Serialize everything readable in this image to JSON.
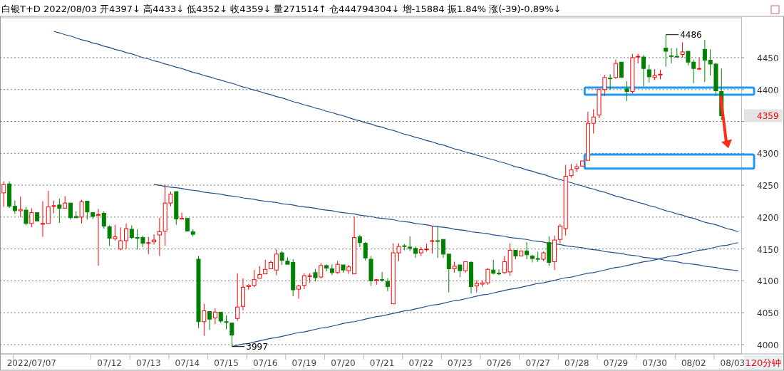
{
  "chart_data": {
    "type": "candlestick",
    "title": "白银T+D 2022/08/03 开4397↓ 高4433↓ 低4352↓ 收4359↓ 量271514↑ 仓444794304↓ 增-15884 振1.84% 涨(-39)-0.89%↓",
    "categories": [
      null,
      null,
      null,
      null,
      null,
      "2022/07/07",
      null,
      null,
      null,
      null,
      null,
      null,
      null,
      null,
      null,
      null,
      null,
      null,
      null,
      "07/12",
      null,
      null,
      null,
      null,
      null,
      null,
      "07/13",
      null,
      null,
      null,
      null,
      null,
      null,
      "07/14",
      null,
      null,
      null,
      null,
      null,
      null,
      "07/15",
      null,
      null,
      null,
      null,
      null,
      null,
      "07/16",
      null,
      null,
      null,
      null,
      null,
      null,
      "07/19",
      null,
      null,
      null,
      null,
      null,
      null,
      "07/20",
      null,
      null,
      null,
      null,
      null,
      null,
      "07/21",
      null,
      null,
      null,
      null,
      null,
      null,
      "07/22",
      null,
      null,
      null,
      null,
      null,
      null,
      "07/23",
      null,
      null,
      null,
      null,
      null,
      null,
      "07/26",
      null,
      null,
      null,
      null,
      null,
      null,
      "07/27",
      null,
      null,
      null,
      null,
      null,
      null,
      "07/28",
      null,
      null,
      null,
      null,
      null,
      null,
      "07/29",
      null,
      null,
      null,
      null,
      null,
      null,
      "07/30",
      null,
      null,
      null,
      null,
      null,
      null,
      "08/02",
      null,
      null,
      null,
      null,
      null,
      null,
      "08/03",
      null
    ],
    "ohlc": [
      [
        4238,
        4256,
        4216,
        4251
      ],
      [
        4252,
        4256,
        4214,
        4217
      ],
      [
        4217,
        4226,
        4205,
        4210
      ],
      [
        4210,
        4232,
        4200,
        4212
      ],
      [
        4211,
        4216,
        4187,
        4190
      ],
      [
        4190,
        4214,
        4184,
        4207
      ],
      [
        4207,
        4207,
        4194,
        4194
      ],
      [
        4190,
        4225,
        4169,
        4190
      ],
      [
        4190,
        4241,
        4190,
        4216
      ],
      [
        4217,
        4226,
        4206,
        4218
      ],
      [
        4219,
        4229,
        4191,
        4214
      ],
      [
        4214,
        4233,
        4214,
        4222
      ],
      [
        4222,
        4223,
        4196,
        4199
      ],
      [
        4201,
        4209,
        4199,
        4199
      ],
      [
        4200,
        4227,
        4190,
        4224
      ],
      [
        4225,
        4225,
        4196,
        4208
      ],
      [
        4207,
        4208,
        4197,
        4201
      ],
      [
        4203,
        4213,
        4124,
        4204
      ],
      [
        4206,
        4209,
        4182,
        4186
      ],
      [
        4185,
        4187,
        4155,
        4167
      ],
      [
        4166,
        4188,
        4163,
        4169
      ],
      [
        4150,
        4184,
        4148,
        4163
      ],
      [
        4163,
        4190,
        4150,
        4182
      ],
      [
        4181,
        4187,
        4165,
        4168
      ],
      [
        4168,
        4181,
        4149,
        4167
      ],
      [
        4168,
        4171,
        4153,
        4159
      ],
      [
        4159,
        4169,
        4142,
        4160
      ],
      [
        4161,
        4173,
        4157,
        4164
      ],
      [
        4172,
        4199,
        4139,
        4177
      ],
      [
        4178,
        4251,
        4155,
        4222
      ],
      [
        4222,
        4240,
        4217,
        4236
      ],
      [
        4240,
        4241,
        4188,
        4197
      ],
      [
        4197,
        4207,
        4196,
        4198
      ],
      [
        4198,
        4198,
        4178,
        4178
      ],
      [
        4177,
        4181,
        4170,
        4173
      ],
      [
        4134,
        4139,
        4026,
        4036
      ],
      [
        4036,
        4064,
        4014,
        4053
      ],
      [
        4052,
        4052,
        4023,
        4040
      ],
      [
        4042,
        4057,
        4032,
        4051
      ],
      [
        4051,
        4052,
        4034,
        4037
      ],
      [
        4036,
        4046,
        4024,
        4035
      ],
      [
        4034,
        4034,
        3997,
        4015
      ],
      [
        4041,
        4112,
        4037,
        4059
      ],
      [
        4060,
        4104,
        4054,
        4090
      ],
      [
        4091,
        4095,
        4086,
        4093
      ],
      [
        4093,
        4117,
        4090,
        4102
      ],
      [
        4104,
        4123,
        4104,
        4110
      ],
      [
        4111,
        4133,
        4111,
        4118
      ],
      [
        4119,
        4132,
        4119,
        4129
      ],
      [
        4117,
        4150,
        4109,
        4142
      ],
      [
        4144,
        4147,
        4125,
        4132
      ],
      [
        4131,
        4137,
        4126,
        4126
      ],
      [
        4129,
        4134,
        4076,
        4086
      ],
      [
        4087,
        4094,
        4072,
        4092
      ],
      [
        4093,
        4112,
        4087,
        4108
      ],
      [
        4107,
        4112,
        4097,
        4108
      ],
      [
        4113,
        4119,
        4099,
        4105
      ],
      [
        4106,
        4128,
        4104,
        4124
      ],
      [
        4124,
        4126,
        4115,
        4120
      ],
      [
        4119,
        4126,
        4109,
        4113
      ],
      [
        4113,
        4131,
        4111,
        4126
      ],
      [
        4125,
        4125,
        4113,
        4117
      ],
      [
        4116,
        4125,
        4111,
        4122
      ],
      [
        4111,
        4201,
        4111,
        4168
      ],
      [
        4169,
        4172,
        4153,
        4160
      ],
      [
        4159,
        4161,
        4132,
        4136
      ],
      [
        4134,
        4139,
        4092,
        4100
      ],
      [
        4101,
        4103,
        4094,
        4102
      ],
      [
        4102,
        4114,
        4099,
        4101
      ],
      [
        4099,
        4104,
        4084,
        4091
      ],
      [
        4064,
        4159,
        4063,
        4144
      ],
      [
        4144,
        4159,
        4131,
        4154
      ],
      [
        4155,
        4158,
        4148,
        4154
      ],
      [
        4153,
        4170,
        4147,
        4151
      ],
      [
        4151,
        4154,
        4136,
        4143
      ],
      [
        4144,
        4153,
        4139,
        4149
      ],
      [
        4149,
        4158,
        4146,
        4150
      ],
      [
        4162,
        4186,
        4143,
        4163
      ],
      [
        4163,
        4186,
        4136,
        4162
      ],
      [
        4165,
        4165,
        4136,
        4142
      ],
      [
        4142,
        4142,
        4082,
        4119
      ],
      [
        4119,
        4130,
        4113,
        4123
      ],
      [
        4125,
        4125,
        4106,
        4116
      ],
      [
        4116,
        4130,
        4113,
        4130
      ],
      [
        4129,
        4131,
        4080,
        4091
      ],
      [
        4092,
        4101,
        4082,
        4096
      ],
      [
        4095,
        4101,
        4091,
        4097
      ],
      [
        4097,
        4120,
        4094,
        4118
      ],
      [
        4117,
        4133,
        4110,
        4112
      ],
      [
        4112,
        4118,
        4109,
        4111
      ],
      [
        4113,
        4139,
        4111,
        4130
      ],
      [
        4114,
        4159,
        4108,
        4148
      ],
      [
        4148,
        4148,
        4134,
        4139
      ],
      [
        4139,
        4148,
        4139,
        4147
      ],
      [
        4147,
        4161,
        4134,
        4141
      ],
      [
        4139,
        4141,
        4129,
        4135
      ],
      [
        4135,
        4146,
        4130,
        4134
      ],
      [
        4134,
        4146,
        4131,
        4144
      ],
      [
        4160,
        4170,
        4123,
        4129
      ],
      [
        4130,
        4171,
        4117,
        4164
      ],
      [
        4165,
        4189,
        4159,
        4186
      ],
      [
        4182,
        4282,
        4171,
        4264
      ],
      [
        4265,
        4283,
        4262,
        4274
      ],
      [
        4276,
        4284,
        4271,
        4279
      ],
      [
        4280,
        4289,
        4279,
        4288
      ],
      [
        4289,
        4365,
        4288,
        4347
      ],
      [
        4347,
        4369,
        4331,
        4357
      ],
      [
        4360,
        4401,
        4355,
        4400
      ],
      [
        4400,
        4423,
        4390,
        4419
      ],
      [
        4418,
        4424,
        4400,
        4417
      ],
      [
        4419,
        4447,
        4417,
        4441
      ],
      [
        4443,
        4444,
        4418,
        4419
      ],
      [
        4401,
        4413,
        4382,
        4397
      ],
      [
        4397,
        4456,
        4394,
        4450
      ],
      [
        4451,
        4456,
        4441,
        4452
      ],
      [
        4451,
        4454,
        4405,
        4433
      ],
      [
        4431,
        4439,
        4411,
        4420
      ],
      [
        4419,
        4432,
        4415,
        4422
      ],
      [
        4423,
        4431,
        4416,
        4424
      ],
      [
        4465,
        4486,
        4436,
        4460
      ],
      [
        4453,
        4465,
        4441,
        4452
      ],
      [
        4452,
        4465,
        4451,
        4451
      ],
      [
        4455,
        4474,
        4450,
        4459
      ],
      [
        4460,
        4461,
        4438,
        4443
      ],
      [
        4443,
        4447,
        4410,
        4433
      ],
      [
        4432,
        4450,
        4432,
        4433
      ],
      [
        4463,
        4478,
        4412,
        4446
      ],
      [
        4446,
        4463,
        4422,
        4440
      ],
      [
        4440,
        4442,
        4390,
        4398
      ],
      [
        4397,
        4433,
        4352,
        4359
      ],
      null,
      null,
      null
    ],
    "series": [
      {
        "type": "line",
        "color": "#1f4e8c",
        "values": [
          null,
          null,
          null,
          null,
          null,
          null,
          null,
          null,
          null,
          4491,
          4489,
          4486,
          4484,
          4481,
          4478,
          4476,
          4473,
          4471,
          4468,
          4466,
          4463,
          4461,
          4458,
          4456,
          4453,
          4450,
          4448,
          4445,
          4443,
          4440,
          4438,
          4435,
          4433,
          4430,
          4427,
          4425,
          4422,
          4420,
          4417,
          4415,
          4412,
          4410,
          4407,
          4404,
          4402,
          4399,
          4397,
          4394,
          4392,
          4389,
          4387,
          4384,
          4381,
          4379,
          4376,
          4374,
          4371,
          4369,
          4366,
          4364,
          4361,
          4359,
          4356,
          4353,
          4351,
          4348,
          4346,
          4343,
          4341,
          4338,
          4336,
          4333,
          4330,
          4328,
          4325,
          4323,
          4320,
          4318,
          4315,
          4313,
          4310,
          4307,
          4305,
          4302,
          4300,
          4297,
          4295,
          4292,
          4290,
          4287,
          4285,
          4282,
          4279,
          4277,
          4274,
          4272,
          4269,
          4267,
          4264,
          4261,
          4259,
          4256,
          4254,
          4251,
          4249,
          4246,
          4244,
          4241,
          4239,
          4236,
          4233,
          4231,
          4228,
          4226,
          4223,
          4221,
          4218,
          4216,
          4213,
          4210,
          4208,
          4205,
          4203,
          4200,
          4198,
          4195,
          4192,
          4190,
          4188,
          4185,
          4182,
          4180,
          4177
        ]
      },
      {
        "type": "line",
        "color": "#1f4e8c",
        "values": [
          null,
          null,
          null,
          null,
          null,
          null,
          null,
          null,
          null,
          null,
          null,
          null,
          null,
          null,
          null,
          null,
          null,
          null,
          null,
          null,
          null,
          null,
          null,
          null,
          null,
          null,
          null,
          4251,
          4250,
          4248,
          4247,
          4246,
          4245,
          4243,
          4242,
          4241,
          4239,
          4238,
          4237,
          4236,
          4234,
          4233,
          4232,
          4230,
          4229,
          4228,
          4226,
          4225,
          4224,
          4223,
          4221,
          4220,
          4219,
          4217,
          4216,
          4215,
          4214,
          4212,
          4211,
          4210,
          4208,
          4207,
          4206,
          4205,
          4203,
          4202,
          4201,
          4199,
          4198,
          4197,
          4196,
          4194,
          4193,
          4192,
          4190,
          4189,
          4188,
          4186,
          4185,
          4184,
          4183,
          4181,
          4180,
          4179,
          4177,
          4176,
          4175,
          4174,
          4172,
          4171,
          4170,
          4168,
          4167,
          4166,
          4165,
          4163,
          4162,
          4161,
          4159,
          4158,
          4157,
          4155,
          4154,
          4153,
          4152,
          4150,
          4149,
          4148,
          4146,
          4145,
          4144,
          4143,
          4141,
          4140,
          4139,
          4137,
          4136,
          4135,
          4134,
          4132,
          4131,
          4130,
          4128,
          4127,
          4126,
          4125,
          4123,
          4122,
          4121,
          4119,
          4118,
          4117,
          4116
        ]
      },
      {
        "type": "line",
        "color": "#1f4e8c",
        "values": [
          null,
          null,
          null,
          null,
          null,
          null,
          null,
          null,
          null,
          null,
          null,
          null,
          null,
          null,
          null,
          null,
          null,
          null,
          null,
          null,
          null,
          null,
          null,
          null,
          null,
          null,
          null,
          null,
          null,
          null,
          null,
          null,
          null,
          null,
          null,
          null,
          null,
          null,
          null,
          null,
          null,
          3997,
          3999,
          4001,
          4002,
          4004,
          4006,
          4008,
          4010,
          4011,
          4013,
          4015,
          4017,
          4019,
          4020,
          4022,
          4024,
          4026,
          4027,
          4029,
          4031,
          4033,
          4035,
          4036,
          4038,
          4040,
          4042,
          4044,
          4045,
          4047,
          4049,
          4051,
          4053,
          4054,
          4056,
          4058,
          4060,
          4062,
          4063,
          4065,
          4067,
          4069,
          4070,
          4072,
          4074,
          4076,
          4078,
          4079,
          4081,
          4083,
          4085,
          4087,
          4088,
          4090,
          4092,
          4094,
          4096,
          4097,
          4099,
          4101,
          4103,
          4105,
          4106,
          4108,
          4110,
          4112,
          4113,
          4115,
          4117,
          4119,
          4121,
          4122,
          4124,
          4126,
          4128,
          4130,
          4131,
          4133,
          4135,
          4137,
          4139,
          4140,
          4142,
          4144,
          4146,
          4148,
          4149,
          4151,
          4153,
          4155,
          4156,
          4158,
          4160
        ]
      }
    ],
    "ylim": [
      3985.5,
      4512.5
    ],
    "yticks": [
      4000,
      4050,
      4100,
      4150,
      4200,
      4250,
      4300,
      {
        "value": 4350,
        "label": null
      },
      4400,
      4450
    ],
    "grid": "y",
    "marker": "none",
    "annotations": [
      "4486",
      "3997",
      "4359",
      "120分钟"
    ]
  }
}
